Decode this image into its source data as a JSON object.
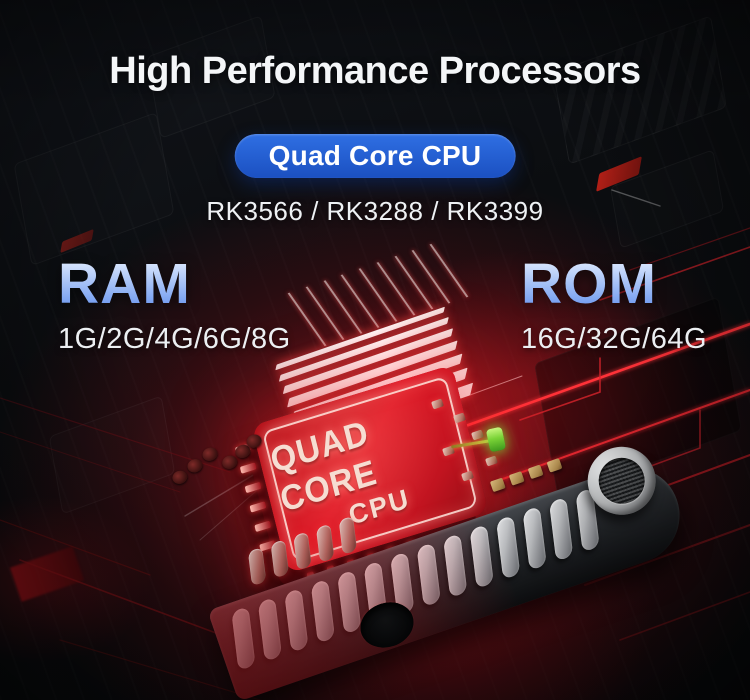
{
  "banner": {
    "title": "High Performance Processors",
    "badge": "Quad Core CPU",
    "chip_models": "RK3566 / RK3288 / RK3399",
    "ram": {
      "label": "RAM",
      "values": "1G/2G/4G/6G/8G"
    },
    "rom": {
      "label": "ROM",
      "values": "16G/32G/64G"
    },
    "cpu_chip": {
      "line1": "QUAD CORE",
      "line2": "CPU"
    }
  },
  "colors": {
    "background": "#0b0d10",
    "title_white": "#f4f6f8",
    "badge_blue_top": "#2f6fe3",
    "badge_blue_bottom": "#1b50c1",
    "heading_blue_light": "#dce8fd",
    "heading_blue_dark": "#6b97ef",
    "chip_red": "#d41520",
    "chip_text": "#f6ddd2",
    "trace_red": "#ff3038",
    "led_green": "#7ce03a"
  }
}
